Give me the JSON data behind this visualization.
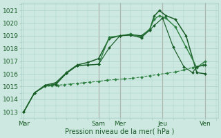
{
  "background_color": "#cce8e0",
  "grid_color": "#aad0c8",
  "dark_green": "#1a5c28",
  "mid_green": "#2d8040",
  "xlabel": "Pression niveau de la mer( hPa )",
  "ylim": [
    1012.5,
    1021.6
  ],
  "yticks": [
    1013,
    1014,
    1015,
    1016,
    1017,
    1018,
    1019,
    1020,
    1021
  ],
  "xlim": [
    -0.1,
    9.1
  ],
  "day_labels": [
    "Mar",
    "Sam",
    "Mer",
    "Jeu",
    "Ven"
  ],
  "day_positions": [
    0.0,
    3.5,
    4.5,
    6.5,
    8.5
  ],
  "vline_positions": [
    3.5,
    4.5,
    6.5,
    8.5
  ],
  "vline_color": "#993333",
  "series": [
    {
      "x": [
        0.0,
        0.5,
        1.0,
        1.3,
        1.6,
        1.9,
        2.2,
        2.5,
        2.8,
        3.1,
        3.5,
        3.9,
        4.3,
        4.7,
        5.1,
        5.5,
        5.9,
        6.3,
        6.7,
        7.1,
        7.5,
        7.9,
        8.4
      ],
      "y": [
        1013.0,
        1014.5,
        1015.0,
        1015.05,
        1015.1,
        1015.15,
        1015.2,
        1015.25,
        1015.3,
        1015.35,
        1015.4,
        1015.5,
        1015.55,
        1015.6,
        1015.65,
        1015.75,
        1015.85,
        1015.95,
        1016.05,
        1016.15,
        1016.3,
        1016.5,
        1016.7
      ],
      "style": "--",
      "marker": "D",
      "ms": 2.0,
      "color": "#2d8040",
      "lw": 0.8
    },
    {
      "x": [
        0.0,
        0.5,
        1.0,
        1.5,
        2.0,
        2.5,
        3.0,
        3.5,
        4.0,
        4.5,
        5.0,
        5.5,
        5.9,
        6.1,
        6.35,
        6.65,
        7.1,
        7.6,
        8.1,
        8.5
      ],
      "y": [
        1013.0,
        1014.5,
        1015.1,
        1015.3,
        1016.1,
        1016.7,
        1016.9,
        1017.2,
        1018.8,
        1019.0,
        1019.1,
        1019.0,
        1019.5,
        1020.55,
        1021.0,
        1020.6,
        1020.3,
        1019.0,
        1016.1,
        1016.0
      ],
      "style": "-",
      "marker": "D",
      "ms": 2.0,
      "color": "#1a5c28",
      "lw": 1.1
    },
    {
      "x": [
        0.0,
        0.5,
        1.0,
        1.5,
        2.0,
        2.5,
        3.0,
        3.5,
        4.0,
        4.5,
        5.0,
        5.5,
        5.9,
        6.1,
        6.35,
        6.65,
        7.1,
        7.6,
        8.1,
        8.5
      ],
      "y": [
        1013.0,
        1014.5,
        1015.05,
        1015.2,
        1016.05,
        1016.65,
        1016.7,
        1016.75,
        1018.9,
        1019.0,
        1019.15,
        1018.9,
        1019.55,
        1020.3,
        1020.6,
        1020.4,
        1019.7,
        1018.1,
        1016.5,
        1017.0
      ],
      "style": "-",
      "marker": "D",
      "ms": 2.0,
      "color": "#2d8040",
      "lw": 1.0
    },
    {
      "x": [
        0.0,
        0.5,
        1.0,
        1.5,
        2.0,
        2.5,
        3.0,
        3.5,
        4.0,
        4.5,
        5.0,
        5.5,
        5.9,
        6.1,
        6.5,
        7.0,
        7.5,
        7.9,
        8.1,
        8.5
      ],
      "y": [
        1013.0,
        1014.5,
        1015.05,
        1015.15,
        1016.05,
        1016.65,
        1016.7,
        1016.75,
        1018.05,
        1019.0,
        1019.05,
        1018.85,
        1019.45,
        1019.8,
        1020.4,
        1018.1,
        1016.55,
        1016.1,
        1016.55,
        1016.7
      ],
      "style": "-",
      "marker": "D",
      "ms": 2.0,
      "color": "#1a5c28",
      "lw": 0.85
    }
  ]
}
